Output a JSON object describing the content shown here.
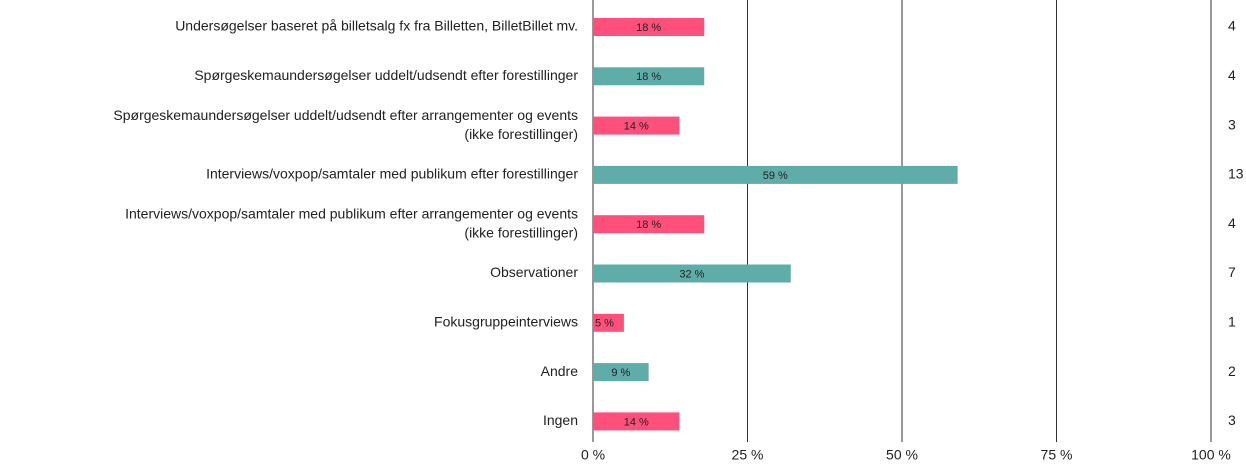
{
  "chart_data": {
    "type": "barh",
    "categories": [
      [
        "Undersøgelser baseret på billetsalg fx fra Billetten, BilletBillet mv."
      ],
      [
        "Spørgeskemaundersøgelser uddelt/udsendt efter forestillinger"
      ],
      [
        "Spørgeskemaundersøgelser uddelt/udsendt efter arrangementer og events",
        "(ikke forestillinger)"
      ],
      [
        "Interviews/voxpop/samtaler med publikum efter forestillinger"
      ],
      [
        "Interviews/voxpop/samtaler med publikum efter arrangementer og events",
        "(ikke forestillinger)"
      ],
      [
        "Observationer"
      ],
      [
        "Fokusgruppeinterviews"
      ],
      [
        "Andre"
      ],
      [
        "Ingen"
      ]
    ],
    "values": [
      18,
      18,
      14,
      59,
      18,
      32,
      5,
      9,
      14
    ],
    "value_labels": [
      "18 %",
      "18 %",
      "14 %",
      "59 %",
      "18 %",
      "32 %",
      "5 %",
      "9 %",
      "14 %"
    ],
    "counts": [
      4,
      4,
      3,
      13,
      4,
      7,
      1,
      2,
      3
    ],
    "colors": [
      "#ff4f7b",
      "#5fada9",
      "#ff4f7b",
      "#5fada9",
      "#ff4f7b",
      "#5fada9",
      "#ff4f7b",
      "#5fada9",
      "#ff4f7b"
    ],
    "xlim": [
      0,
      100
    ],
    "xticks": [
      {
        "value": 0,
        "label": "0 %"
      },
      {
        "value": 25,
        "label": "25 %"
      },
      {
        "value": 50,
        "label": "50 %"
      },
      {
        "value": 75,
        "label": "75 %"
      },
      {
        "value": 100,
        "label": "100 %"
      }
    ],
    "grid": true
  }
}
